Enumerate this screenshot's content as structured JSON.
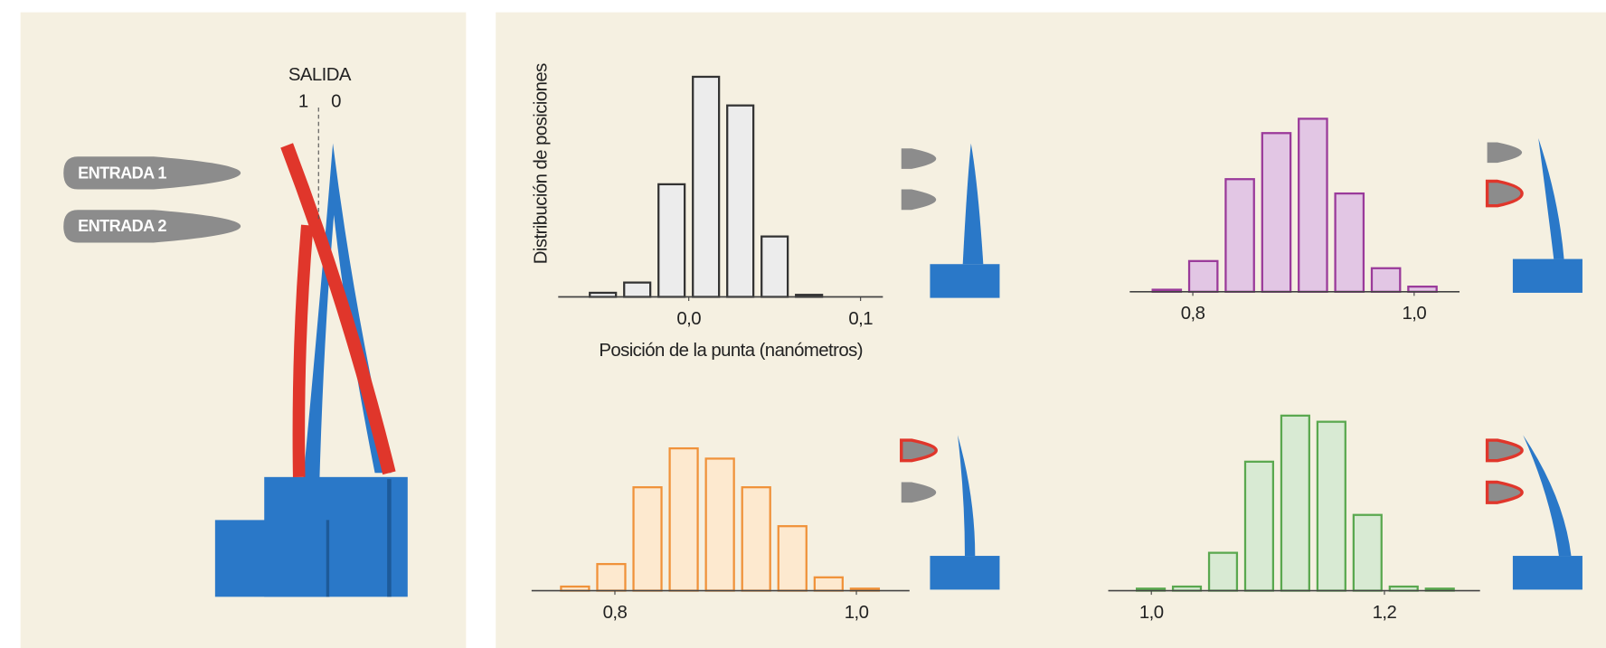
{
  "diagram": {
    "output_label": "SALIDA",
    "output_states": [
      "1",
      "0"
    ],
    "inputs": [
      "ENTRADA 1",
      "ENTRADA 2"
    ]
  },
  "chart_data": [
    {
      "type": "histogram",
      "x_label": "Posición de la punta (nanómetros)",
      "y_label": "Distribución de posiciones",
      "bins": [
        -0.06,
        -0.04,
        -0.02,
        0,
        0.02,
        0.04,
        0.06,
        0.08
      ],
      "counts": [
        4,
        14,
        110,
        215,
        187,
        59,
        2
      ],
      "fill": "#ececec",
      "color": "#333333",
      "xlim": [
        -0.076,
        0.113
      ],
      "ylim": [
        0,
        230
      ],
      "xticks": [
        {
          "value": 0,
          "label": "0,0"
        },
        {
          "value": 0.1,
          "label": "0,1"
        }
      ]
    },
    {
      "type": "histogram",
      "bins": [
        0.76,
        0.793,
        0.826,
        0.859,
        0.892,
        0.925,
        0.958,
        0.991,
        1.024
      ],
      "counts": [
        2,
        30,
        110,
        155,
        169,
        96,
        23,
        5
      ],
      "fill": "#e2c6e4",
      "color": "#9a3a9a",
      "xlim": [
        0.743,
        1.041
      ],
      "ylim": [
        0,
        230
      ],
      "xticks": [
        {
          "value": 0.8,
          "label": "0,8"
        },
        {
          "value": 1.0,
          "label": "1,0"
        }
      ]
    },
    {
      "type": "histogram",
      "bins": [
        0.752,
        0.782,
        0.812,
        0.842,
        0.872,
        0.902,
        0.932,
        0.962,
        0.992,
        1.022
      ],
      "counts": [
        4,
        26,
        101,
        139,
        129,
        101,
        63,
        13,
        2
      ],
      "fill": "#fde9cf",
      "color": "#f0923a",
      "xlim": [
        0.731,
        1.044
      ],
      "ylim": [
        0,
        230
      ],
      "xticks": [
        {
          "value": 0.8,
          "label": "0,8"
        },
        {
          "value": 1.0,
          "label": "1,0"
        }
      ]
    },
    {
      "type": "histogram",
      "bins": [
        0.984,
        1.015,
        1.046,
        1.077,
        1.108,
        1.139,
        1.17,
        1.201,
        1.232,
        1.263
      ],
      "counts": [
        2,
        4,
        37,
        126,
        171,
        165,
        74,
        4,
        2
      ],
      "fill": "#d8ead3",
      "color": "#5aa84f",
      "xlim": [
        0.963,
        1.282
      ],
      "ylim": [
        0,
        230
      ],
      "xticks": [
        {
          "value": 1.0,
          "label": "1,0"
        },
        {
          "value": 1.2,
          "label": "1,2"
        }
      ]
    }
  ]
}
